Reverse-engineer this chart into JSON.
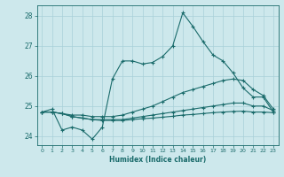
{
  "xlabel": "Humidex (Indice chaleur)",
  "xlim": [
    -0.5,
    23.5
  ],
  "ylim": [
    23.7,
    28.35
  ],
  "yticks": [
    24,
    25,
    26,
    27,
    28
  ],
  "xticks": [
    0,
    1,
    2,
    3,
    4,
    5,
    6,
    7,
    8,
    9,
    10,
    11,
    12,
    13,
    14,
    15,
    16,
    17,
    18,
    19,
    20,
    21,
    22,
    23
  ],
  "background_color": "#cde8ec",
  "grid_color": "#a8d0d8",
  "line_color": "#1a6b6b",
  "lines": [
    {
      "x": [
        0,
        1,
        2,
        3,
        4,
        5,
        6,
        7,
        8,
        9,
        10,
        11,
        12,
        13,
        14,
        15,
        16,
        17,
        18,
        19,
        20,
        21,
        22,
        23
      ],
      "y": [
        24.8,
        24.9,
        24.2,
        24.3,
        24.2,
        23.9,
        24.3,
        25.9,
        26.5,
        26.5,
        26.4,
        26.45,
        26.65,
        27.0,
        28.1,
        27.65,
        27.15,
        26.7,
        26.5,
        26.1,
        25.6,
        25.3,
        25.3,
        24.8
      ]
    },
    {
      "x": [
        0,
        1,
        2,
        3,
        4,
        5,
        6,
        7,
        8,
        9,
        10,
        11,
        12,
        13,
        14,
        15,
        16,
        17,
        18,
        19,
        20,
        21,
        22,
        23
      ],
      "y": [
        24.8,
        24.8,
        24.75,
        24.7,
        24.7,
        24.65,
        24.65,
        24.65,
        24.7,
        24.8,
        24.9,
        25.0,
        25.15,
        25.3,
        25.45,
        25.55,
        25.65,
        25.75,
        25.85,
        25.9,
        25.85,
        25.55,
        25.35,
        24.9
      ]
    },
    {
      "x": [
        0,
        1,
        2,
        3,
        4,
        5,
        6,
        7,
        8,
        9,
        10,
        11,
        12,
        13,
        14,
        15,
        16,
        17,
        18,
        19,
        20,
        21,
        22,
        23
      ],
      "y": [
        24.8,
        24.8,
        24.75,
        24.65,
        24.6,
        24.55,
        24.55,
        24.55,
        24.55,
        24.6,
        24.65,
        24.7,
        24.75,
        24.8,
        24.85,
        24.9,
        24.95,
        25.0,
        25.05,
        25.1,
        25.1,
        25.0,
        25.0,
        24.85
      ]
    },
    {
      "x": [
        0,
        1,
        2,
        3,
        4,
        5,
        6,
        7,
        8,
        9,
        10,
        11,
        12,
        13,
        14,
        15,
        16,
        17,
        18,
        19,
        20,
        21,
        22,
        23
      ],
      "y": [
        24.8,
        24.8,
        24.75,
        24.65,
        24.6,
        24.55,
        24.52,
        24.52,
        24.52,
        24.55,
        24.58,
        24.6,
        24.63,
        24.66,
        24.7,
        24.72,
        24.75,
        24.78,
        24.8,
        24.82,
        24.83,
        24.8,
        24.8,
        24.78
      ]
    }
  ]
}
